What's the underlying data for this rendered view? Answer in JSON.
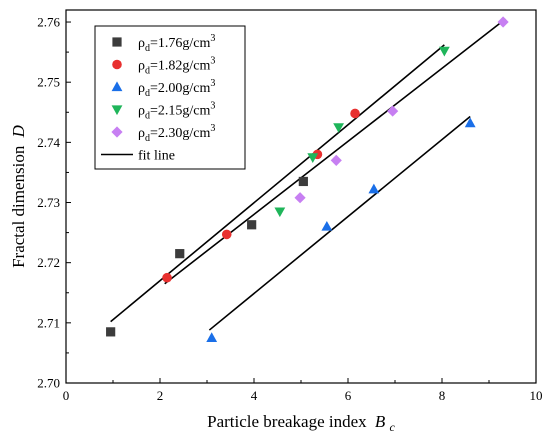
{
  "chart_data": {
    "type": "scatter",
    "xlabel": "Particle breakage index",
    "xlabel_symbol": "B",
    "xlabel_subscript": "c",
    "ylabel": "Fractal dimension",
    "ylabel_symbol": "D",
    "xlim": [
      0,
      10
    ],
    "ylim": [
      2.7,
      2.762
    ],
    "x_ticks": [
      "0",
      "2",
      "4",
      "6",
      "8",
      "10"
    ],
    "y_ticks": [
      "2.70",
      "2.71",
      "2.72",
      "2.73",
      "2.74",
      "2.75",
      "2.76"
    ],
    "grid": false,
    "legend_position": "top-left",
    "legend_prefix": "ρ",
    "legend_prefix_sub": "d",
    "series": [
      {
        "name": "=1.76g/cm",
        "unit_sup": "3",
        "marker": "square",
        "color": "#3c3c3c",
        "points": [
          [
            0.95,
            2.7085
          ],
          [
            2.42,
            2.7215
          ],
          [
            3.95,
            2.7263
          ],
          [
            5.05,
            2.7335
          ]
        ]
      },
      {
        "name": "=1.82g/cm",
        "unit_sup": "3",
        "marker": "circle",
        "color": "#e8302f",
        "points": [
          [
            2.15,
            2.7175
          ],
          [
            3.42,
            2.7247
          ],
          [
            5.35,
            2.738
          ],
          [
            6.15,
            2.7448
          ]
        ]
      },
      {
        "name": "=2.00g/cm",
        "unit_sup": "3",
        "marker": "triangle-up",
        "color": "#1a6fe8",
        "points": [
          [
            3.1,
            2.7075
          ],
          [
            5.55,
            2.726
          ],
          [
            6.55,
            2.7322
          ],
          [
            8.6,
            2.7432
          ]
        ]
      },
      {
        "name": "=2.15g/cm",
        "unit_sup": "3",
        "marker": "triangle-down",
        "color": "#1fb55a",
        "points": [
          [
            4.55,
            2.7285
          ],
          [
            5.25,
            2.7375
          ],
          [
            5.8,
            2.7425
          ],
          [
            8.05,
            2.7552
          ]
        ]
      },
      {
        "name": "=2.30g/cm",
        "unit_sup": "3",
        "marker": "diamond",
        "color": "#c77ff2",
        "points": [
          [
            4.98,
            2.7308
          ],
          [
            5.75,
            2.737
          ],
          [
            6.95,
            2.7452
          ],
          [
            9.3,
            2.76
          ]
        ]
      }
    ],
    "fit_legend": "fit line",
    "fit_lines": [
      [
        [
          0.95,
          2.7102
        ],
        [
          8.05,
          2.7562
        ]
      ],
      [
        [
          2.1,
          2.7165
        ],
        [
          9.35,
          2.7605
        ]
      ],
      [
        [
          3.05,
          2.7088
        ],
        [
          8.6,
          2.7443
        ]
      ]
    ]
  }
}
